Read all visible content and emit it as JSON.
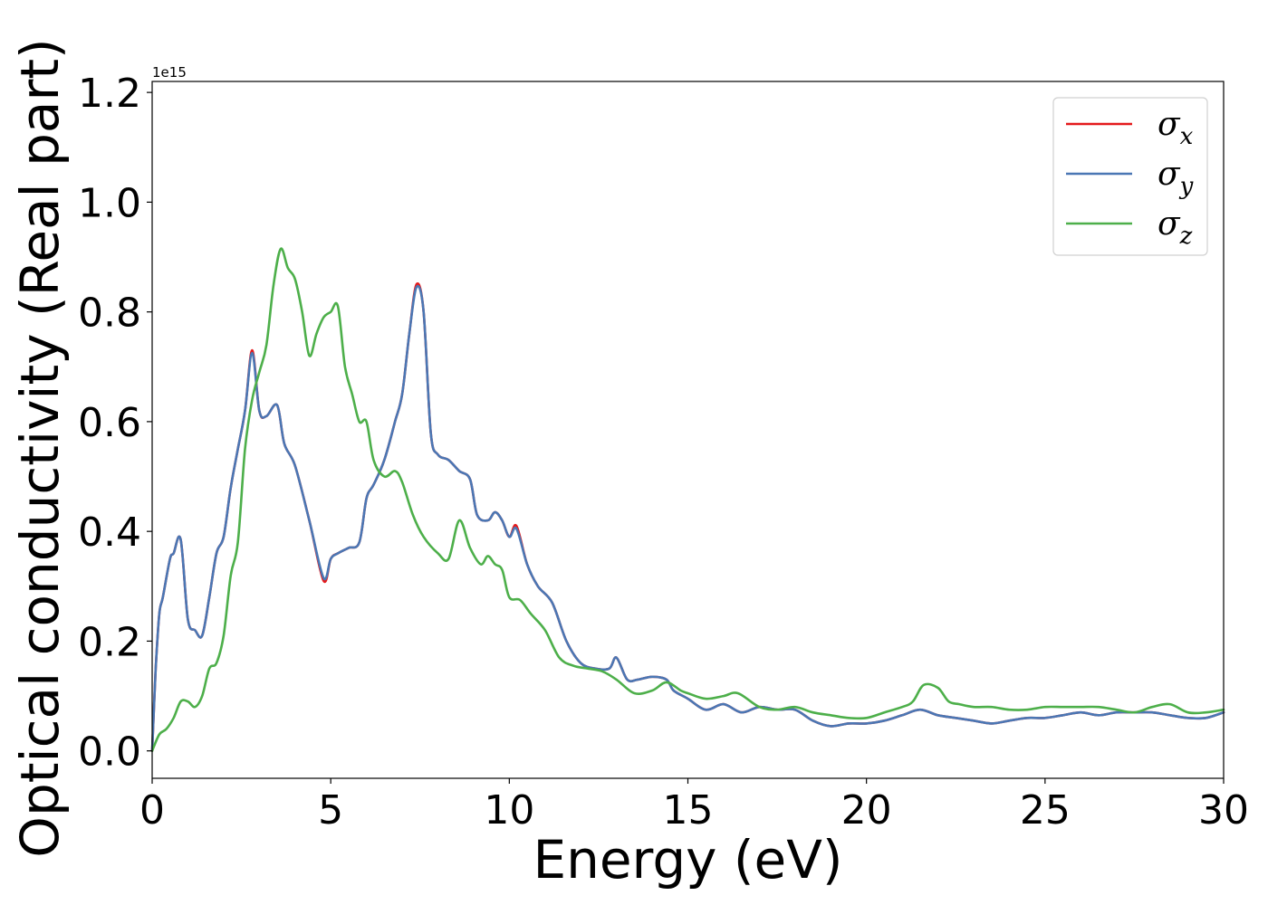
{
  "chart_data": {
    "type": "line",
    "xlabel": "Energy (eV)",
    "ylabel": "Optical conductivity (Real part)",
    "offset_text": "1e15",
    "xlim": [
      0,
      30
    ],
    "ylim": [
      -0.05,
      1.22
    ],
    "x_ticks": [
      0,
      5,
      10,
      15,
      20,
      25,
      30
    ],
    "x_tick_labels": [
      "0",
      "5",
      "10",
      "15",
      "20",
      "25",
      "30"
    ],
    "y_ticks": [
      0.0,
      0.2,
      0.4,
      0.6,
      0.8,
      1.0,
      1.2
    ],
    "y_tick_labels": [
      "0.0",
      "0.2",
      "0.4",
      "0.6",
      "0.8",
      "1.0",
      "1.2"
    ],
    "grid": false,
    "legend_position": "top-right",
    "series": [
      {
        "name": "σx",
        "legend_symbol": "σ",
        "legend_subscript": "x",
        "color": "#e41a1c",
        "x": [
          0,
          0.1,
          0.2,
          0.3,
          0.5,
          0.6,
          0.8,
          1.0,
          1.2,
          1.4,
          1.6,
          1.8,
          2.0,
          2.2,
          2.4,
          2.6,
          2.8,
          3.0,
          3.2,
          3.5,
          3.7,
          4.0,
          4.4,
          4.8,
          5.0,
          5.2,
          5.5,
          5.8,
          6.0,
          6.2,
          6.5,
          6.8,
          7.0,
          7.2,
          7.4,
          7.6,
          7.8,
          8.0,
          8.3,
          8.6,
          8.9,
          9.1,
          9.4,
          9.6,
          9.8,
          10.0,
          10.2,
          10.5,
          10.8,
          11.2,
          11.6,
          12.0,
          12.4,
          12.8,
          13.0,
          13.3,
          13.6,
          14.0,
          14.4,
          14.6,
          15.0,
          15.5,
          16.0,
          16.5,
          17.0,
          17.5,
          18.0,
          18.5,
          19.0,
          19.5,
          20.0,
          20.5,
          21.0,
          21.5,
          22.0,
          22.5,
          23.0,
          23.5,
          24.0,
          24.5,
          25.0,
          25.5,
          26.0,
          26.5,
          27.0,
          27.5,
          28.0,
          28.5,
          29.0,
          29.5,
          30.0
        ],
        "y": [
          0.0,
          0.15,
          0.25,
          0.28,
          0.35,
          0.36,
          0.385,
          0.24,
          0.22,
          0.21,
          0.28,
          0.36,
          0.39,
          0.48,
          0.55,
          0.62,
          0.73,
          0.62,
          0.61,
          0.63,
          0.56,
          0.52,
          0.42,
          0.31,
          0.35,
          0.36,
          0.37,
          0.38,
          0.46,
          0.485,
          0.53,
          0.6,
          0.65,
          0.76,
          0.85,
          0.8,
          0.58,
          0.54,
          0.53,
          0.51,
          0.495,
          0.43,
          0.42,
          0.435,
          0.42,
          0.39,
          0.41,
          0.34,
          0.3,
          0.27,
          0.2,
          0.16,
          0.15,
          0.15,
          0.17,
          0.13,
          0.13,
          0.135,
          0.13,
          0.11,
          0.095,
          0.075,
          0.085,
          0.07,
          0.08,
          0.075,
          0.075,
          0.055,
          0.045,
          0.05,
          0.05,
          0.055,
          0.065,
          0.075,
          0.065,
          0.06,
          0.055,
          0.05,
          0.055,
          0.06,
          0.06,
          0.065,
          0.07,
          0.065,
          0.07,
          0.07,
          0.07,
          0.065,
          0.06,
          0.06,
          0.07
        ]
      },
      {
        "name": "σy",
        "legend_symbol": "σ",
        "legend_subscript": "y",
        "color": "#4a77b4",
        "x": [
          0,
          0.1,
          0.2,
          0.3,
          0.5,
          0.6,
          0.8,
          1.0,
          1.2,
          1.4,
          1.6,
          1.8,
          2.0,
          2.2,
          2.4,
          2.6,
          2.8,
          3.0,
          3.2,
          3.5,
          3.7,
          4.0,
          4.4,
          4.8,
          5.0,
          5.2,
          5.5,
          5.8,
          6.0,
          6.2,
          6.5,
          6.8,
          7.0,
          7.2,
          7.4,
          7.6,
          7.8,
          8.0,
          8.3,
          8.6,
          8.9,
          9.1,
          9.4,
          9.6,
          9.8,
          10.0,
          10.2,
          10.5,
          10.8,
          11.2,
          11.6,
          12.0,
          12.4,
          12.8,
          13.0,
          13.3,
          13.6,
          14.0,
          14.4,
          14.6,
          15.0,
          15.5,
          16.0,
          16.5,
          17.0,
          17.5,
          18.0,
          18.5,
          19.0,
          19.5,
          20.0,
          20.5,
          21.0,
          21.5,
          22.0,
          22.5,
          23.0,
          23.5,
          24.0,
          24.5,
          25.0,
          25.5,
          26.0,
          26.5,
          27.0,
          27.5,
          28.0,
          28.5,
          29.0,
          29.5,
          30.0
        ],
        "y": [
          0.0,
          0.15,
          0.25,
          0.28,
          0.35,
          0.36,
          0.385,
          0.24,
          0.22,
          0.21,
          0.28,
          0.36,
          0.39,
          0.48,
          0.55,
          0.62,
          0.725,
          0.62,
          0.61,
          0.63,
          0.56,
          0.52,
          0.42,
          0.315,
          0.35,
          0.36,
          0.37,
          0.38,
          0.46,
          0.485,
          0.53,
          0.6,
          0.65,
          0.76,
          0.845,
          0.8,
          0.58,
          0.54,
          0.53,
          0.51,
          0.495,
          0.43,
          0.42,
          0.435,
          0.42,
          0.39,
          0.405,
          0.34,
          0.3,
          0.27,
          0.2,
          0.16,
          0.15,
          0.15,
          0.17,
          0.13,
          0.13,
          0.135,
          0.13,
          0.11,
          0.095,
          0.075,
          0.085,
          0.07,
          0.08,
          0.075,
          0.075,
          0.055,
          0.045,
          0.05,
          0.05,
          0.055,
          0.065,
          0.075,
          0.065,
          0.06,
          0.055,
          0.05,
          0.055,
          0.06,
          0.06,
          0.065,
          0.07,
          0.065,
          0.07,
          0.07,
          0.07,
          0.065,
          0.06,
          0.06,
          0.07
        ]
      },
      {
        "name": "σz",
        "legend_symbol": "σ",
        "legend_subscript": "z",
        "color": "#4daf4a",
        "x": [
          0,
          0.2,
          0.4,
          0.6,
          0.8,
          1.0,
          1.2,
          1.4,
          1.6,
          1.8,
          2.0,
          2.2,
          2.4,
          2.6,
          2.8,
          3.0,
          3.2,
          3.4,
          3.6,
          3.8,
          4.0,
          4.2,
          4.4,
          4.6,
          4.8,
          5.0,
          5.2,
          5.4,
          5.6,
          5.8,
          6.0,
          6.2,
          6.5,
          6.8,
          7.0,
          7.3,
          7.6,
          8.0,
          8.3,
          8.6,
          8.9,
          9.2,
          9.4,
          9.6,
          9.8,
          10.0,
          10.3,
          10.6,
          11.0,
          11.4,
          11.8,
          12.2,
          12.6,
          13.0,
          13.5,
          14.0,
          14.4,
          14.8,
          15.0,
          15.5,
          16.0,
          16.4,
          17.0,
          17.5,
          18.0,
          18.5,
          19.0,
          19.5,
          20.0,
          20.5,
          21.0,
          21.3,
          21.6,
          22.0,
          22.3,
          22.6,
          23.0,
          23.5,
          24.0,
          24.5,
          25.0,
          25.5,
          26.0,
          26.5,
          27.0,
          27.5,
          28.0,
          28.5,
          29.0,
          29.5,
          30.0
        ],
        "y": [
          0.0,
          0.03,
          0.04,
          0.06,
          0.09,
          0.09,
          0.08,
          0.1,
          0.15,
          0.16,
          0.21,
          0.32,
          0.38,
          0.55,
          0.64,
          0.69,
          0.74,
          0.85,
          0.915,
          0.88,
          0.86,
          0.8,
          0.72,
          0.76,
          0.79,
          0.8,
          0.81,
          0.7,
          0.65,
          0.6,
          0.6,
          0.53,
          0.5,
          0.51,
          0.49,
          0.43,
          0.39,
          0.36,
          0.35,
          0.42,
          0.37,
          0.34,
          0.355,
          0.34,
          0.33,
          0.28,
          0.275,
          0.25,
          0.22,
          0.17,
          0.155,
          0.15,
          0.145,
          0.13,
          0.105,
          0.11,
          0.125,
          0.11,
          0.105,
          0.095,
          0.1,
          0.105,
          0.08,
          0.075,
          0.08,
          0.07,
          0.065,
          0.06,
          0.06,
          0.07,
          0.08,
          0.09,
          0.12,
          0.115,
          0.09,
          0.085,
          0.08,
          0.08,
          0.075,
          0.075,
          0.08,
          0.08,
          0.08,
          0.08,
          0.075,
          0.07,
          0.08,
          0.085,
          0.07,
          0.07,
          0.075
        ]
      }
    ]
  }
}
